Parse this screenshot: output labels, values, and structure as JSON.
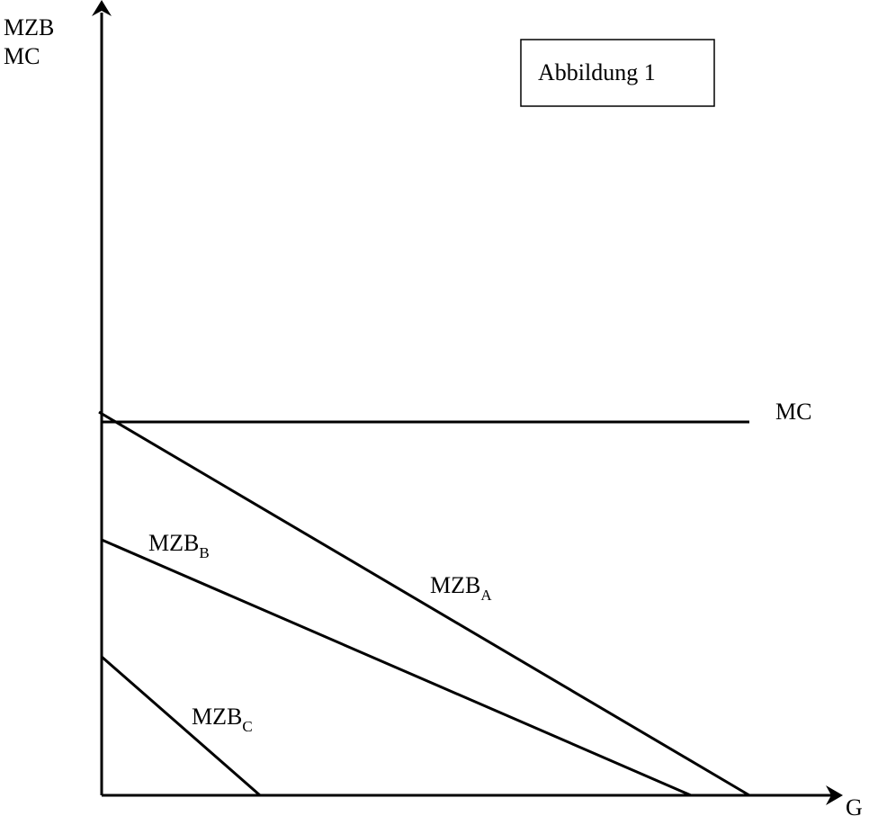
{
  "figure": {
    "box_label": "Abbildung 1",
    "y_axis_label_line1": "MZB",
    "y_axis_label_line2": "MC",
    "x_axis_label": "G"
  },
  "curves": {
    "mc": {
      "label": "MC"
    },
    "mzb_a": {
      "label_base": "MZB",
      "label_sub": "A"
    },
    "mzb_b": {
      "label_base": "MZB",
      "label_sub": "B"
    },
    "mzb_c": {
      "label_base": "MZB",
      "label_sub": "C"
    }
  },
  "colors": {
    "line": "#000000",
    "background": "#ffffff"
  }
}
